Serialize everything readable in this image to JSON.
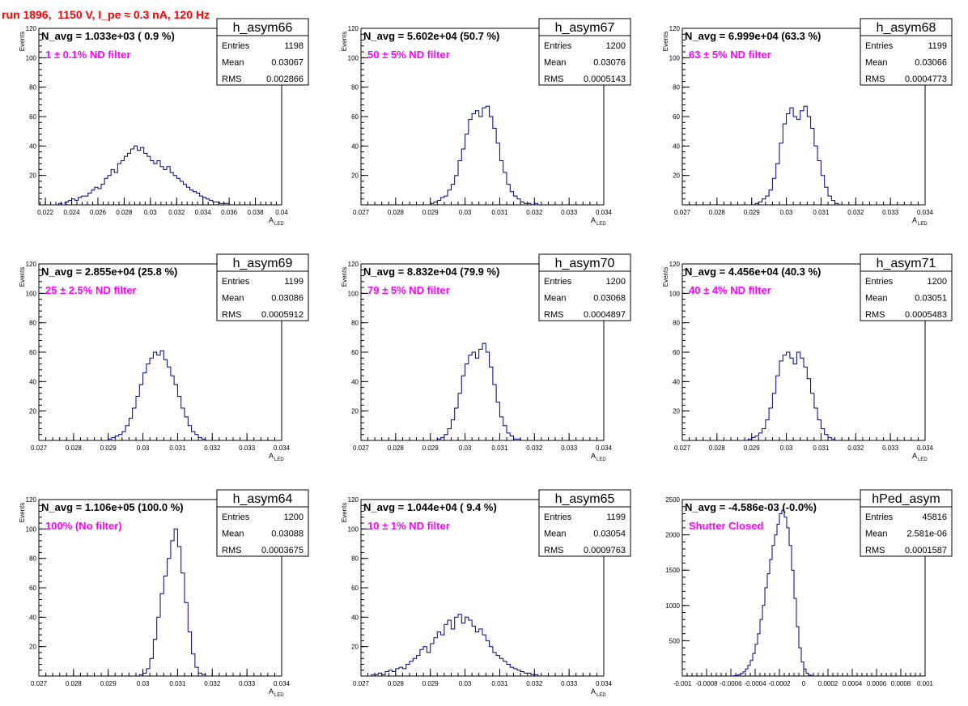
{
  "title": "run 1896,  1150 V, I_pe ≈ 0.3 nA, 120 Hz",
  "colors": {
    "title": "#ff0000",
    "annotation": "#ff00ff",
    "histogram": "#000080",
    "frame": "#000000"
  },
  "chart_data": [
    {
      "type": "histogram",
      "name": "h_asym66",
      "navg": "N_avg = 1.033e+03 ( 0.9 %)",
      "filter": "1 ± 0.1% ND filter",
      "stats": [
        [
          "Entries",
          "1198"
        ],
        [
          "Mean",
          "0.03067"
        ],
        [
          "RMS",
          "0.002866"
        ]
      ],
      "ylabel": "Events",
      "xlabel": "A",
      "xlabel_sub": "LED",
      "xlim": [
        0.0215,
        0.04
      ],
      "ylim": [
        0,
        120
      ],
      "xticks": [
        0.022,
        0.024,
        0.026,
        0.028,
        0.03,
        0.032,
        0.034,
        0.036,
        0.038,
        0.04
      ],
      "xticklabels": [
        "0.022",
        "0.024",
        "0.026",
        "0.028",
        "0.03",
        "0.032",
        "0.034",
        "0.036",
        "0.038",
        "0.04"
      ],
      "yticks": [
        20,
        40,
        60,
        80,
        100,
        120
      ],
      "yticklabels": [
        "20",
        "40",
        "60",
        "80",
        "100",
        "120"
      ],
      "bin_start": 0.023,
      "bin_width": 0.00025,
      "values": [
        1,
        0,
        2,
        3,
        4,
        3,
        5,
        6,
        6,
        8,
        10,
        12,
        11,
        14,
        18,
        20,
        24,
        22,
        28,
        30,
        33,
        35,
        38,
        40,
        37,
        39,
        35,
        33,
        30,
        28,
        30,
        26,
        24,
        26,
        22,
        20,
        18,
        16,
        14,
        12,
        10,
        9,
        8,
        6,
        5,
        4,
        3,
        2,
        2,
        1,
        1,
        1
      ]
    },
    {
      "type": "histogram",
      "name": "h_asym67",
      "navg": "N_avg = 5.602e+04 (50.7 %)",
      "filter": "50 ± 5% ND filter",
      "stats": [
        [
          "Entries",
          "1200"
        ],
        [
          "Mean",
          "0.03076"
        ],
        [
          "RMS",
          "0.0005143"
        ]
      ],
      "ylabel": "Events",
      "xlabel": "A",
      "xlabel_sub": "LED",
      "xlim": [
        0.027,
        0.034
      ],
      "ylim": [
        0,
        120
      ],
      "xticks": [
        0.027,
        0.028,
        0.029,
        0.03,
        0.031,
        0.032,
        0.033,
        0.034
      ],
      "xticklabels": [
        "0.027",
        "0.028",
        "0.029",
        "0.03",
        "0.031",
        "0.032",
        "0.033",
        "0.034"
      ],
      "yticks": [
        20,
        40,
        60,
        80,
        100,
        120
      ],
      "yticklabels": [
        "20",
        "40",
        "60",
        "80",
        "100",
        "120"
      ],
      "bin_start": 0.029,
      "bin_width": 0.0001,
      "values": [
        1,
        2,
        3,
        5,
        6,
        10,
        14,
        20,
        30,
        38,
        48,
        58,
        62,
        64,
        60,
        66,
        67,
        60,
        52,
        42,
        30,
        22,
        14,
        9,
        6,
        4,
        2,
        1,
        1,
        0,
        1
      ]
    },
    {
      "type": "histogram",
      "name": "h_asym68",
      "navg": "N_avg = 6.999e+04 (63.3 %)",
      "filter": "63 ± 5% ND filter",
      "stats": [
        [
          "Entries",
          "1199"
        ],
        [
          "Mean",
          "0.03066"
        ],
        [
          "RMS",
          "0.0004773"
        ]
      ],
      "ylabel": "Events",
      "xlabel": "A",
      "xlabel_sub": "LED",
      "xlim": [
        0.027,
        0.034
      ],
      "ylim": [
        0,
        120
      ],
      "xticks": [
        0.027,
        0.028,
        0.029,
        0.03,
        0.031,
        0.032,
        0.033,
        0.034
      ],
      "xticklabels": [
        "0.027",
        "0.028",
        "0.029",
        "0.03",
        "0.031",
        "0.032",
        "0.033",
        "0.034"
      ],
      "yticks": [
        20,
        40,
        60,
        80,
        100,
        120
      ],
      "yticklabels": [
        "20",
        "40",
        "60",
        "80",
        "100",
        "120"
      ],
      "bin_start": 0.0291,
      "bin_width": 0.0001,
      "values": [
        1,
        2,
        4,
        6,
        10,
        18,
        28,
        42,
        55,
        62,
        66,
        60,
        58,
        64,
        67,
        60,
        52,
        40,
        30,
        20,
        12,
        6,
        3,
        1
      ]
    },
    {
      "type": "histogram",
      "name": "h_asym69",
      "navg": "N_avg = 2.855e+04 (25.8 %)",
      "filter": "25 ± 2.5% ND filter",
      "stats": [
        [
          "Entries",
          "1199"
        ],
        [
          "Mean",
          "0.03086"
        ],
        [
          "RMS",
          "0.0005912"
        ]
      ],
      "ylabel": "Events",
      "xlabel": "A",
      "xlabel_sub": "LED",
      "xlim": [
        0.027,
        0.034
      ],
      "ylim": [
        0,
        120
      ],
      "xticks": [
        0.027,
        0.028,
        0.029,
        0.03,
        0.031,
        0.032,
        0.033,
        0.034
      ],
      "xticklabels": [
        "0.027",
        "0.028",
        "0.029",
        "0.03",
        "0.031",
        "0.032",
        "0.033",
        "0.034"
      ],
      "yticks": [
        20,
        40,
        60,
        80,
        100,
        120
      ],
      "yticklabels": [
        "20",
        "40",
        "60",
        "80",
        "100",
        "120"
      ],
      "bin_start": 0.029,
      "bin_width": 0.0001,
      "values": [
        1,
        2,
        3,
        4,
        6,
        10,
        15,
        22,
        30,
        38,
        46,
        52,
        56,
        60,
        58,
        61,
        55,
        50,
        44,
        38,
        30,
        22,
        16,
        10,
        6,
        4,
        2,
        1
      ]
    },
    {
      "type": "histogram",
      "name": "h_asym70",
      "navg": "N_avg = 8.832e+04 (79.9 %)",
      "filter": "79 ± 5% ND filter",
      "stats": [
        [
          "Entries",
          "1200"
        ],
        [
          "Mean",
          "0.03068"
        ],
        [
          "RMS",
          "0.0004897"
        ]
      ],
      "ylabel": "Events",
      "xlabel": "A",
      "xlabel_sub": "LED",
      "xlim": [
        0.027,
        0.034
      ],
      "ylim": [
        0,
        120
      ],
      "xticks": [
        0.027,
        0.028,
        0.029,
        0.03,
        0.031,
        0.032,
        0.033,
        0.034
      ],
      "xticklabels": [
        "0.027",
        "0.028",
        "0.029",
        "0.03",
        "0.031",
        "0.032",
        "0.033",
        "0.034"
      ],
      "yticks": [
        20,
        40,
        60,
        80,
        100,
        120
      ],
      "yticklabels": [
        "20",
        "40",
        "60",
        "80",
        "100",
        "120"
      ],
      "bin_start": 0.0292,
      "bin_width": 0.0001,
      "values": [
        1,
        2,
        4,
        8,
        14,
        22,
        32,
        44,
        52,
        58,
        60,
        56,
        62,
        66,
        60,
        50,
        38,
        26,
        16,
        10,
        5,
        3,
        1,
        1
      ]
    },
    {
      "type": "histogram",
      "name": "h_asym71",
      "navg": "N_avg = 4.456e+04 (40.3 %)",
      "filter": "40 ± 4% ND filter",
      "stats": [
        [
          "Entries",
          "1200"
        ],
        [
          "Mean",
          "0.03051"
        ],
        [
          "RMS",
          "0.0005483"
        ]
      ],
      "ylabel": "Events",
      "xlabel": "A",
      "xlabel_sub": "LED",
      "xlim": [
        0.027,
        0.034
      ],
      "ylim": [
        0,
        120
      ],
      "xticks": [
        0.027,
        0.028,
        0.029,
        0.03,
        0.031,
        0.032,
        0.033,
        0.034
      ],
      "xticklabels": [
        "0.027",
        "0.028",
        "0.029",
        "0.03",
        "0.031",
        "0.032",
        "0.033",
        "0.034"
      ],
      "yticks": [
        20,
        40,
        60,
        80,
        100,
        120
      ],
      "yticklabels": [
        "20",
        "40",
        "60",
        "80",
        "100",
        "120"
      ],
      "bin_start": 0.0289,
      "bin_width": 0.0001,
      "values": [
        1,
        2,
        3,
        5,
        8,
        14,
        22,
        32,
        44,
        54,
        58,
        60,
        56,
        52,
        60,
        56,
        50,
        42,
        32,
        22,
        14,
        8,
        4,
        2,
        1
      ]
    },
    {
      "type": "histogram",
      "name": "h_asym64",
      "navg": "N_avg = 1.106e+05 (100.0 %)",
      "filter": "100% (No filter)",
      "stats": [
        [
          "Entries",
          "1200"
        ],
        [
          "Mean",
          "0.03088"
        ],
        [
          "RMS",
          "0.0003675"
        ]
      ],
      "ylabel": "Events",
      "xlabel": "A",
      "xlabel_sub": "LED",
      "xlim": [
        0.027,
        0.034
      ],
      "ylim": [
        0,
        120
      ],
      "xticks": [
        0.027,
        0.028,
        0.029,
        0.03,
        0.031,
        0.032,
        0.033,
        0.034
      ],
      "xticklabels": [
        "0.027",
        "0.028",
        "0.029",
        "0.03",
        "0.031",
        "0.032",
        "0.033",
        "0.034"
      ],
      "yticks": [
        20,
        40,
        60,
        80,
        100,
        120
      ],
      "yticklabels": [
        "20",
        "40",
        "60",
        "80",
        "100",
        "120"
      ],
      "bin_start": 0.0299,
      "bin_width": 0.0001,
      "values": [
        1,
        2,
        5,
        12,
        25,
        40,
        56,
        68,
        80,
        92,
        100,
        88,
        70,
        50,
        30,
        15,
        6,
        2,
        1
      ]
    },
    {
      "type": "histogram",
      "name": "h_asym65",
      "navg": "N_avg = 1.044e+04 ( 9.4 %)",
      "filter": "10 ± 1% ND filter",
      "stats": [
        [
          "Entries",
          "1199"
        ],
        [
          "Mean",
          "0.03054"
        ],
        [
          "RMS",
          "0.0009763"
        ]
      ],
      "ylabel": "Events",
      "xlabel": "A",
      "xlabel_sub": "LED",
      "xlim": [
        0.027,
        0.034
      ],
      "ylim": [
        0,
        120
      ],
      "xticks": [
        0.027,
        0.028,
        0.029,
        0.03,
        0.031,
        0.032,
        0.033,
        0.034
      ],
      "xticklabels": [
        "0.027",
        "0.028",
        "0.029",
        "0.03",
        "0.031",
        "0.032",
        "0.033",
        "0.034"
      ],
      "yticks": [
        20,
        40,
        60,
        80,
        100,
        120
      ],
      "yticklabels": [
        "20",
        "40",
        "60",
        "80",
        "100",
        "120"
      ],
      "bin_start": 0.0272,
      "bin_width": 0.0001,
      "values": [
        0,
        1,
        1,
        2,
        1,
        3,
        4,
        3,
        5,
        6,
        5,
        8,
        10,
        12,
        14,
        18,
        20,
        16,
        22,
        26,
        30,
        28,
        35,
        38,
        32,
        40,
        42,
        36,
        40,
        38,
        34,
        30,
        32,
        28,
        24,
        20,
        16,
        14,
        12,
        10,
        8,
        6,
        5,
        4,
        3,
        2,
        2,
        1,
        1
      ]
    },
    {
      "type": "histogram",
      "name": "hPed_asym",
      "navg": "N_avg = -4.586e-03 (-0.0%)",
      "filter": "Shutter Closed",
      "stats": [
        [
          "Entries",
          "45816"
        ],
        [
          "Mean",
          "2.581e-06"
        ],
        [
          "RMS",
          "0.0001587"
        ]
      ],
      "ylabel": "",
      "xlabel": "",
      "xlabel_sub": "",
      "xlim": [
        -0.001,
        0.001
      ],
      "ylim": [
        0,
        2500
      ],
      "xticks": [
        -0.001,
        -0.0008,
        -0.0006,
        -0.0004,
        -0.0002,
        0,
        0.0002,
        0.0004,
        0.0006,
        0.0008,
        0.001
      ],
      "xticklabels": [
        "-0.001",
        "-0.0008",
        "-0.0006",
        "-0.0004",
        "-0.0002",
        "0",
        "0.0002",
        "0.0004",
        "0.0006",
        "0.0008",
        "0.001"
      ],
      "yticks": [
        500,
        1000,
        1500,
        2000,
        2500
      ],
      "yticklabels": [
        "500",
        "1000",
        "1500",
        "2000",
        "2500"
      ],
      "bin_start": -0.00058,
      "bin_width": 2e-05,
      "values": [
        5,
        10,
        20,
        35,
        60,
        100,
        150,
        220,
        320,
        450,
        600,
        800,
        1000,
        1250,
        1450,
        1650,
        1850,
        2000,
        2150,
        2300,
        2350,
        2250,
        2100,
        1850,
        1500,
        1100,
        700,
        400,
        200,
        100,
        40,
        15,
        5
      ]
    }
  ]
}
